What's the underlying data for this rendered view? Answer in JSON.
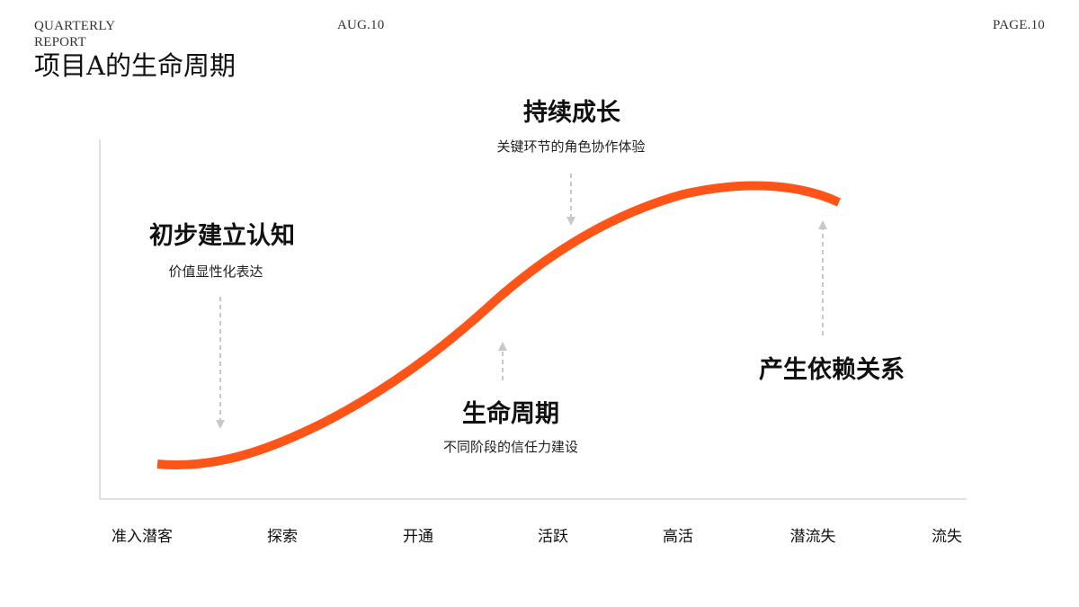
{
  "header": {
    "report_label": "QUARTERLY REPORT",
    "date": "AUG.10",
    "page": "PAGE.10"
  },
  "page_title": "项目A的生命周期",
  "colors": {
    "curve": "#FF5417",
    "arrow": "#CCCCCC",
    "axis": "#D6D6D6"
  },
  "annotations": [
    {
      "title": "初步建立认知",
      "subtitle": "价值显性化表达",
      "arrow": "down"
    },
    {
      "title": "生命周期",
      "subtitle": "不同阶段的信任力建设",
      "arrow": "up"
    },
    {
      "title": "持续成长",
      "subtitle": "关键环节的角色协作体验",
      "arrow": "down"
    },
    {
      "title": "产生依赖关系",
      "subtitle": "",
      "arrow": "up"
    }
  ],
  "stages": [
    "准入潜客",
    "探索",
    "开通",
    "活跃",
    "高活",
    "潜流失",
    "流失"
  ]
}
